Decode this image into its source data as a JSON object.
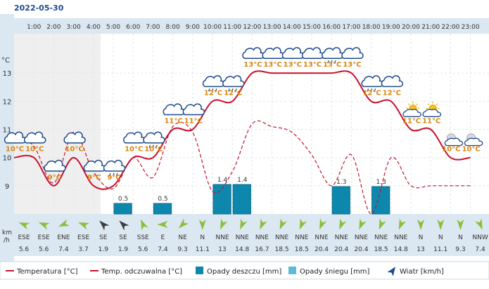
{
  "date": "2022-05-30",
  "ylabel_unit": "°C",
  "wind_axis_label": [
    "km",
    "/h"
  ],
  "legend": [
    {
      "label": "Temperatura [°C]",
      "kind": "line",
      "color": "#c8102e"
    },
    {
      "label": "Temp. odczuwalna [°C]",
      "kind": "dashed",
      "color": "#c8102e"
    },
    {
      "label": "Opady deszczu [mm]",
      "kind": "box",
      "color": "#0e87ad"
    },
    {
      "label": "Opady śniegu [mm]",
      "kind": "box",
      "color": "#5bbcd6"
    },
    {
      "label": "Wiatr [km/h]",
      "kind": "arrow",
      "color": "#1d4a8c"
    }
  ],
  "chart_data": {
    "type": "line",
    "title": "",
    "hours": [
      "1:00",
      "2:00",
      "3:00",
      "4:00",
      "5:00",
      "6:00",
      "7:00",
      "8:00",
      "9:00",
      "10:00",
      "11:00",
      "12:00",
      "13:00",
      "14:00",
      "15:00",
      "16:00",
      "17:00",
      "18:00",
      "19:00",
      "20:00",
      "21:00",
      "22:00",
      "23:00"
    ],
    "y_ticks": [
      9,
      10,
      11,
      12,
      13
    ],
    "ylim": [
      8.0,
      14.4
    ],
    "temperature": [
      10,
      10,
      9,
      10,
      9,
      9,
      10,
      10,
      11,
      11,
      12,
      12,
      13,
      13,
      13,
      13,
      13,
      13,
      12,
      12,
      11,
      11,
      10,
      10
    ],
    "temperature_labels": [
      "10°C",
      "10°C",
      "9°C",
      "10°C",
      "9°C",
      "9°C",
      "10°C",
      "10°C",
      "11°C",
      "11°C",
      "12°C",
      "12°C",
      "13°C",
      "13°C",
      "13°C",
      "13°C",
      "13°C",
      "13°C",
      "12°C",
      "12°C",
      "11°C",
      "11°C",
      "10°C",
      "10°C"
    ],
    "weather_icons": [
      "cloud",
      "cloud",
      "cloud",
      "cloud",
      "cloud",
      "cloud-rain",
      "cloud",
      "cloud-rain",
      "cloud",
      "cloud",
      "cloud-rain",
      "cloud-rain",
      "cloud",
      "cloud",
      "cloud",
      "cloud",
      "cloud-rain",
      "cloud",
      "cloud-rain",
      "cloud",
      "sun-cloud",
      "sun-cloud",
      "moon-cloud",
      "moon-cloud"
    ],
    "feels_like": [
      10.8,
      10.4,
      9.1,
      10.9,
      9.5,
      8.9,
      10.0,
      9.3,
      11.1,
      10.9,
      8.8,
      9.5,
      11.2,
      11.1,
      10.9,
      10.1,
      9.0,
      10.1,
      8.0,
      10.0,
      9.0,
      9.0,
      9.0,
      9.0
    ],
    "rain": [
      0,
      0,
      0,
      0,
      0,
      0.5,
      0,
      0.5,
      0,
      0,
      1.4,
      1.4,
      0,
      0,
      0,
      0,
      1.3,
      0,
      1.3,
      0,
      0,
      0,
      0,
      0
    ],
    "rain_labels": [
      "",
      "",
      "",
      "",
      "",
      "0.5",
      "",
      "0.5",
      "",
      "",
      "1.4",
      "1.4",
      "",
      "",
      "",
      "",
      "1.3",
      "",
      "1.3",
      "",
      "",
      "",
      "",
      ""
    ],
    "wind_dir": [
      "ESE",
      "ESE",
      "ENE",
      "ESE",
      "SE",
      "SE",
      "SSE",
      "E",
      "NE",
      "N",
      "NNE",
      "NNE",
      "NNE",
      "NNE",
      "NNE",
      "NNE",
      "NNE",
      "NNE",
      "NNE",
      "NNE",
      "N",
      "N",
      "N",
      "NNW"
    ],
    "wind_speed": [
      "5.6",
      "5.6",
      "7.4",
      "3.7",
      "1.9",
      "1.9",
      "5.6",
      "7.4",
      "9.3",
      "11.1",
      "13",
      "14.8",
      "16.7",
      "18.5",
      "18.5",
      "20.4",
      "20.4",
      "20.4",
      "18.5",
      "14.8",
      "13",
      "11.1",
      "9.3",
      "7.4"
    ],
    "wind_gusty": [
      false,
      false,
      false,
      false,
      true,
      true,
      false,
      false,
      false,
      false,
      false,
      false,
      false,
      false,
      false,
      false,
      false,
      false,
      false,
      false,
      false,
      false,
      false,
      false
    ]
  }
}
